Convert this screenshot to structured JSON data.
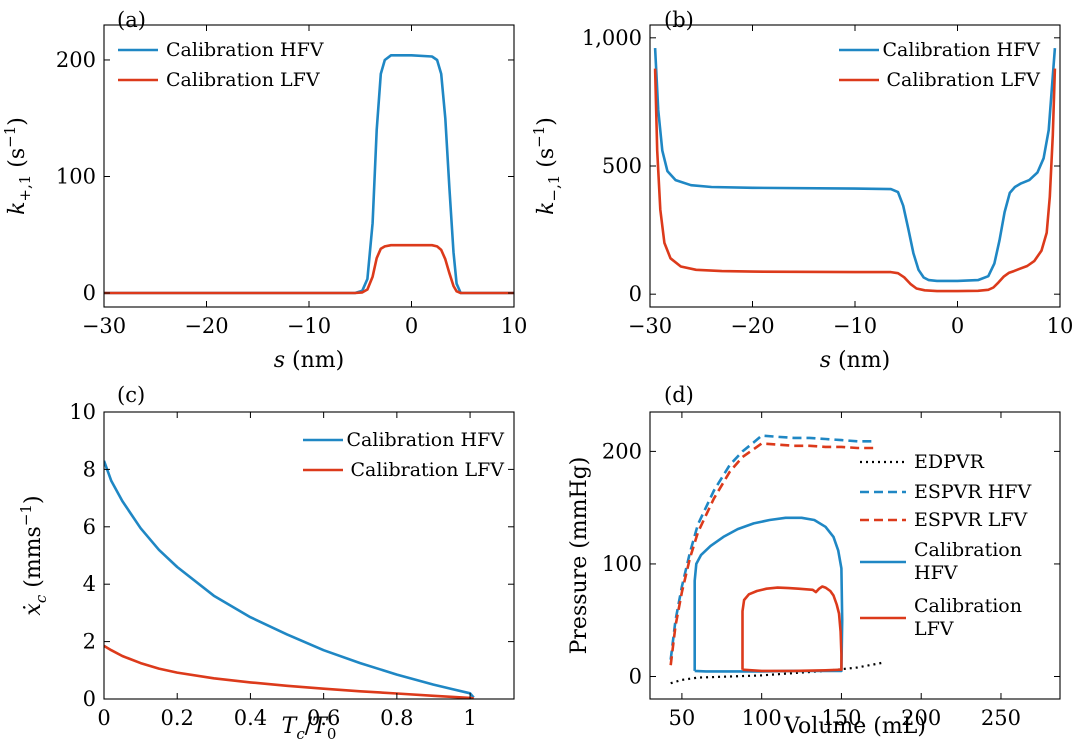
{
  "colors": {
    "hfv": "#1f87c4",
    "lfv": "#dc3a1b",
    "edpvr": "#000000"
  },
  "chart_data": [
    {
      "id": "a",
      "type": "line",
      "panel_label": "(a)",
      "xlabel": "s (nm)",
      "ylabel": "k+,1 (s⁻¹)",
      "xlim": [
        -30,
        10
      ],
      "ylim": [
        -12,
        230
      ],
      "xticks": [
        -30,
        -20,
        -10,
        0,
        10
      ],
      "xtick_labels": [
        "−30",
        "−20",
        "−10",
        "0",
        "10"
      ],
      "yticks": [
        0,
        100,
        200
      ],
      "ytick_labels": [
        "0",
        "100",
        "200"
      ],
      "grid": false,
      "legend_position": "top-left",
      "series": [
        {
          "name": "Calibration HFV",
          "color_key": "hfv",
          "dash": "solid",
          "x": [
            -30,
            -5.5,
            -4.8,
            -4.3,
            -3.8,
            -3.4,
            -3.0,
            -2.6,
            -2.0,
            0,
            2.0,
            2.5,
            2.9,
            3.3,
            3.7,
            4.1,
            4.4,
            4.8,
            10
          ],
          "y": [
            0,
            0,
            2,
            12,
            60,
            140,
            188,
            200,
            204,
            204,
            203,
            200,
            188,
            150,
            90,
            35,
            8,
            0,
            0
          ]
        },
        {
          "name": "Calibration LFV",
          "color_key": "lfv",
          "dash": "solid",
          "x": [
            -30,
            -5.5,
            -4.8,
            -4.3,
            -3.8,
            -3.4,
            -3.0,
            -2.6,
            -2.0,
            0,
            2.0,
            2.5,
            2.9,
            3.3,
            3.7,
            4.1,
            4.4,
            4.8,
            10
          ],
          "y": [
            0,
            0,
            0.5,
            3,
            14,
            30,
            38,
            40,
            41,
            41,
            41,
            40,
            37,
            29,
            17,
            6,
            1.5,
            0,
            0
          ]
        }
      ]
    },
    {
      "id": "b",
      "type": "line",
      "panel_label": "(b)",
      "xlabel": "s (nm)",
      "ylabel": "k−,1 (s⁻¹)",
      "xlim": [
        -30,
        10
      ],
      "ylim": [
        -50,
        1050
      ],
      "xticks": [
        -30,
        -20,
        -10,
        0,
        10
      ],
      "xtick_labels": [
        "−30",
        "−20",
        "−10",
        "0",
        "10"
      ],
      "yticks": [
        0,
        500,
        1000
      ],
      "ytick_labels": [
        "0",
        "500",
        "1,000"
      ],
      "grid": false,
      "legend_position": "top-right",
      "series": [
        {
          "name": "Calibration HFV",
          "color_key": "hfv",
          "dash": "solid",
          "x": [
            -29.5,
            -29.2,
            -28.8,
            -28.3,
            -27.5,
            -26,
            -24,
            -20,
            -10,
            -6.5,
            -5.8,
            -5.3,
            -4.8,
            -4.3,
            -3.8,
            -3.3,
            -2.8,
            -2,
            0,
            2,
            3,
            3.6,
            4.1,
            4.6,
            5.1,
            5.6,
            6.2,
            7,
            7.8,
            8.4,
            8.9,
            9.2,
            9.5
          ],
          "y": [
            960,
            720,
            560,
            480,
            445,
            425,
            418,
            415,
            412,
            410,
            398,
            345,
            255,
            160,
            95,
            65,
            55,
            52,
            52,
            55,
            70,
            120,
            210,
            320,
            395,
            418,
            432,
            445,
            475,
            530,
            640,
            800,
            960
          ]
        },
        {
          "name": "Calibration LFV",
          "color_key": "lfv",
          "dash": "solid",
          "x": [
            -29.5,
            -29.3,
            -29,
            -28.6,
            -28,
            -27,
            -25.5,
            -23,
            -20,
            -10,
            -6.5,
            -5.8,
            -5.2,
            -4.6,
            -4,
            -3.2,
            -2,
            0,
            2,
            3,
            3.5,
            4,
            4.5,
            5,
            5.5,
            6,
            6.8,
            7.5,
            8.2,
            8.7,
            9.0,
            9.3,
            9.5
          ],
          "y": [
            880,
            560,
            330,
            200,
            140,
            108,
            95,
            90,
            88,
            86,
            86,
            82,
            66,
            40,
            22,
            15,
            12,
            12,
            13,
            17,
            26,
            46,
            68,
            83,
            90,
            98,
            110,
            130,
            170,
            240,
            380,
            620,
            880
          ]
        }
      ]
    },
    {
      "id": "c",
      "type": "line",
      "panel_label": "(c)",
      "xlabel": "Tc/T0",
      "ylabel": "ẋc (mms⁻¹)",
      "xlim": [
        0,
        1.12
      ],
      "ylim": [
        0,
        10
      ],
      "xticks": [
        0,
        0.2,
        0.4,
        0.6,
        0.8,
        1
      ],
      "xtick_labels": [
        "0",
        "0.2",
        "0.4",
        "0.6",
        "0.8",
        "1"
      ],
      "yticks": [
        0,
        2,
        4,
        6,
        8,
        10
      ],
      "ytick_labels": [
        "0",
        "2",
        "4",
        "6",
        "8",
        "10"
      ],
      "grid": false,
      "legend_position": "top-right",
      "series": [
        {
          "name": "Calibration HFV",
          "color_key": "hfv",
          "dash": "solid",
          "x": [
            0,
            0.02,
            0.05,
            0.1,
            0.15,
            0.2,
            0.3,
            0.4,
            0.5,
            0.6,
            0.7,
            0.8,
            0.9,
            0.95,
            1.0,
            1.01
          ],
          "y": [
            8.3,
            7.6,
            6.9,
            5.95,
            5.2,
            4.6,
            3.6,
            2.85,
            2.25,
            1.7,
            1.25,
            0.85,
            0.5,
            0.35,
            0.2,
            0.05
          ]
        },
        {
          "name": "Calibration LFV",
          "color_key": "lfv",
          "dash": "solid",
          "x": [
            0,
            0.02,
            0.05,
            0.1,
            0.15,
            0.2,
            0.3,
            0.4,
            0.5,
            0.6,
            0.7,
            0.8,
            0.9,
            1.0,
            1.01
          ],
          "y": [
            1.85,
            1.7,
            1.5,
            1.25,
            1.06,
            0.92,
            0.72,
            0.58,
            0.46,
            0.36,
            0.27,
            0.19,
            0.11,
            0.04,
            0.02
          ]
        }
      ]
    },
    {
      "id": "d",
      "type": "line",
      "panel_label": "(d)",
      "xlabel": "Volume (mL)",
      "ylabel": "Pressure (mmHg)",
      "xlim": [
        30,
        287
      ],
      "ylim": [
        -20,
        235
      ],
      "xticks": [
        50,
        100,
        150,
        200,
        250
      ],
      "xtick_labels": [
        "50",
        "100",
        "150",
        "200",
        "250"
      ],
      "yticks": [
        0,
        100,
        200
      ],
      "ytick_labels": [
        "0",
        "100",
        "200"
      ],
      "grid": false,
      "legend_position": "right",
      "series": [
        {
          "name": "EDPVR",
          "color_key": "edpvr",
          "dash": "dotted",
          "x": [
            43,
            50,
            60,
            80,
            100,
            120,
            140,
            160,
            175
          ],
          "y": [
            -6,
            -3,
            -1,
            0,
            1,
            3,
            5,
            8,
            12
          ]
        },
        {
          "name": "ESPVR HFV",
          "color_key": "hfv",
          "dash": "dashed",
          "x": [
            43,
            46,
            50,
            55,
            60,
            70,
            80,
            88,
            95,
            100,
            110,
            120,
            130,
            140,
            150,
            160,
            170
          ],
          "y": [
            15,
            50,
            80,
            110,
            135,
            165,
            188,
            200,
            208,
            214,
            213,
            212,
            212,
            211,
            210,
            209,
            209
          ]
        },
        {
          "name": "ESPVR LFV",
          "color_key": "lfv",
          "dash": "dashed",
          "x": [
            43,
            46,
            50,
            55,
            60,
            70,
            80,
            88,
            95,
            100,
            110,
            120,
            130,
            140,
            150,
            160,
            170
          ],
          "y": [
            10,
            45,
            75,
            105,
            128,
            158,
            182,
            195,
            202,
            207,
            206,
            205,
            205,
            204,
            204,
            203,
            203
          ]
        },
        {
          "name": "Calibration HFV",
          "color_key": "hfv",
          "dash": "solid",
          "x": [
            58,
            58,
            59,
            62,
            68,
            76,
            85,
            95,
            105,
            115,
            125,
            133,
            140,
            145,
            148,
            150,
            150.5,
            150,
            140,
            120,
            100,
            80,
            65,
            58
          ],
          "y": [
            5,
            85,
            100,
            108,
            116,
            124,
            131,
            136,
            139,
            141,
            141,
            139,
            133,
            124,
            112,
            96,
            50,
            5,
            5,
            5,
            4.5,
            4.5,
            4.5,
            5
          ]
        },
        {
          "name": "Calibration LFV",
          "color_key": "lfv",
          "dash": "solid",
          "x": [
            88,
            88,
            89,
            92,
            97,
            103,
            110,
            117,
            123,
            128,
            132,
            134,
            136,
            138,
            140,
            143,
            145,
            147,
            148.5,
            149.5,
            150,
            150,
            140,
            120,
            100,
            88
          ],
          "y": [
            6,
            58,
            68,
            73,
            76,
            78,
            79,
            78.5,
            78,
            77.5,
            77,
            75,
            78,
            80,
            79,
            76,
            72,
            64,
            56,
            40,
            20,
            6,
            5.5,
            5,
            5,
            6
          ]
        }
      ]
    }
  ]
}
